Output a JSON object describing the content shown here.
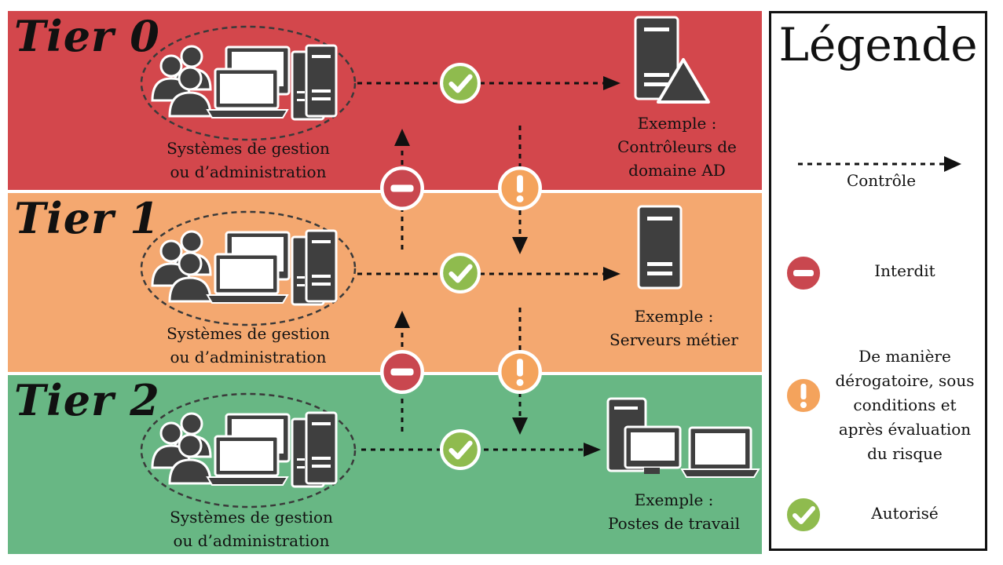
{
  "tiers": [
    {
      "title": "Tier 0",
      "system_label": [
        "Systèmes de gestion",
        "ou d’administration"
      ],
      "example_label": [
        "Exemple :",
        "Contrôleurs de",
        "domaine AD"
      ]
    },
    {
      "title": "Tier 1",
      "system_label": [
        "Systèmes de gestion",
        "ou d’administration"
      ],
      "example_label": [
        "Exemple :",
        "Serveurs métier"
      ]
    },
    {
      "title": "Tier 2",
      "system_label": [
        "Systèmes de gestion",
        "ou d’administration"
      ],
      "example_label": [
        "Exemple :",
        "Postes de travail"
      ]
    }
  ],
  "legend": {
    "title": "Légende",
    "control": "Contrôle",
    "forbidden": "Interdit",
    "conditional": [
      "De manière",
      "dérogatoire, sous",
      "conditions et",
      "après évaluation",
      "du risque"
    ],
    "allowed": "Autorisé"
  },
  "colors": {
    "tier0": "#d3474c",
    "tier1": "#f4a870",
    "tier2": "#68b784",
    "forbidden_icon": "#c9474f",
    "conditional_icon": "#f4a35c",
    "allowed_icon": "#8fbb4e",
    "icon_dark": "#3f3f3f"
  }
}
